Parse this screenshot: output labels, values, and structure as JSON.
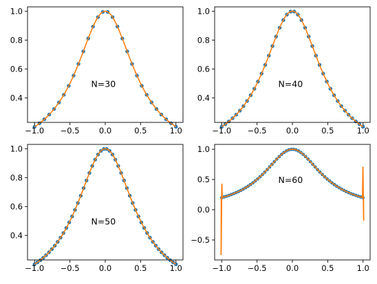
{
  "colors": {
    "points": "#1f77b4",
    "line": "#ff7f0e",
    "axes": "#000000",
    "background": "#ffffff"
  },
  "chart_data": [
    {
      "type": "line",
      "title": "",
      "xlabel": "",
      "ylabel": "",
      "xlim": [
        -1.1,
        1.1
      ],
      "ylim": [
        0.23,
        1.03
      ],
      "xticks": [
        -1.0,
        -0.5,
        0.0,
        0.5,
        1.0
      ],
      "xtick_labels": [
        "−1.0",
        "−0.5",
        "0.0",
        "0.5",
        "1.0"
      ],
      "yticks": [
        0.4,
        0.6,
        0.8,
        1.0
      ],
      "ytick_labels": [
        "0.4",
        "0.6",
        "0.8",
        "1.0"
      ],
      "annotation": {
        "text": "N=30",
        "x": -0.2,
        "y": 0.5
      },
      "grid": false,
      "series": [
        {
          "kind": "markers",
          "function": "1/(1+4x^2)",
          "n_points": 30,
          "x_range": [
            -1,
            1
          ]
        },
        {
          "kind": "line",
          "function": "1/(1+4x^2)",
          "interpolation_degree": 29,
          "x_range": [
            -1,
            1
          ]
        }
      ]
    },
    {
      "type": "line",
      "title": "",
      "xlabel": "",
      "ylabel": "",
      "xlim": [
        -1.1,
        1.1
      ],
      "ylim": [
        0.23,
        1.03
      ],
      "xticks": [
        -1.0,
        -0.5,
        0.0,
        0.5,
        1.0
      ],
      "xtick_labels": [
        "−1.0",
        "−0.5",
        "0.0",
        "0.5",
        "1.0"
      ],
      "yticks": [
        0.4,
        0.6,
        0.8,
        1.0
      ],
      "ytick_labels": [
        "0.4",
        "0.6",
        "0.8",
        "1.0"
      ],
      "annotation": {
        "text": "N=40",
        "x": -0.2,
        "y": 0.5
      },
      "grid": false,
      "series": [
        {
          "kind": "markers",
          "function": "1/(1+4x^2)",
          "n_points": 40,
          "x_range": [
            -1,
            1
          ]
        },
        {
          "kind": "line",
          "function": "1/(1+4x^2)",
          "interpolation_degree": 39,
          "x_range": [
            -1,
            1
          ]
        }
      ]
    },
    {
      "type": "line",
      "title": "",
      "xlabel": "",
      "ylabel": "",
      "xlim": [
        -1.1,
        1.1
      ],
      "ylim": [
        0.23,
        1.03
      ],
      "xticks": [
        -1.0,
        -0.5,
        0.0,
        0.5,
        1.0
      ],
      "xtick_labels": [
        "−1.0",
        "−0.5",
        "0.0",
        "0.5",
        "1.0"
      ],
      "yticks": [
        0.4,
        0.6,
        0.8,
        1.0
      ],
      "ytick_labels": [
        "0.4",
        "0.6",
        "0.8",
        "1.0"
      ],
      "annotation": {
        "text": "N=50",
        "x": -0.2,
        "y": 0.5
      },
      "grid": false,
      "series": [
        {
          "kind": "markers",
          "function": "1/(1+4x^2)",
          "n_points": 50,
          "x_range": [
            -1,
            1
          ]
        },
        {
          "kind": "line",
          "function": "1/(1+4x^2)",
          "interpolation_degree": 49,
          "x_range": [
            -1,
            1
          ]
        }
      ]
    },
    {
      "type": "line",
      "title": "",
      "xlabel": "",
      "ylabel": "",
      "xlim": [
        -1.1,
        1.1
      ],
      "ylim": [
        -0.83,
        1.08
      ],
      "xticks": [
        -1.0,
        -0.5,
        0.0,
        0.5,
        1.0
      ],
      "xtick_labels": [
        "−1.0",
        "−0.5",
        "0.0",
        "0.5",
        "1.0"
      ],
      "yticks": [
        -0.5,
        0.0,
        0.5,
        1.0
      ],
      "ytick_labels": [
        "−0.5",
        "0.0",
        "0.5",
        "1.0"
      ],
      "annotation": {
        "text": "N=60",
        "x": -0.2,
        "y": 0.5
      },
      "grid": false,
      "series": [
        {
          "kind": "markers",
          "function": "1/(1+4x^2)",
          "n_points": 60,
          "x_range": [
            -1,
            1
          ]
        },
        {
          "kind": "line",
          "function": "1/(1+4x^2)",
          "interpolation_degree": 59,
          "x_range": [
            -1,
            1
          ],
          "edge_oscillation": {
            "left_min": -0.75,
            "left_max": 0.43,
            "right_min": -0.18,
            "right_max": 0.71
          }
        }
      ]
    }
  ]
}
